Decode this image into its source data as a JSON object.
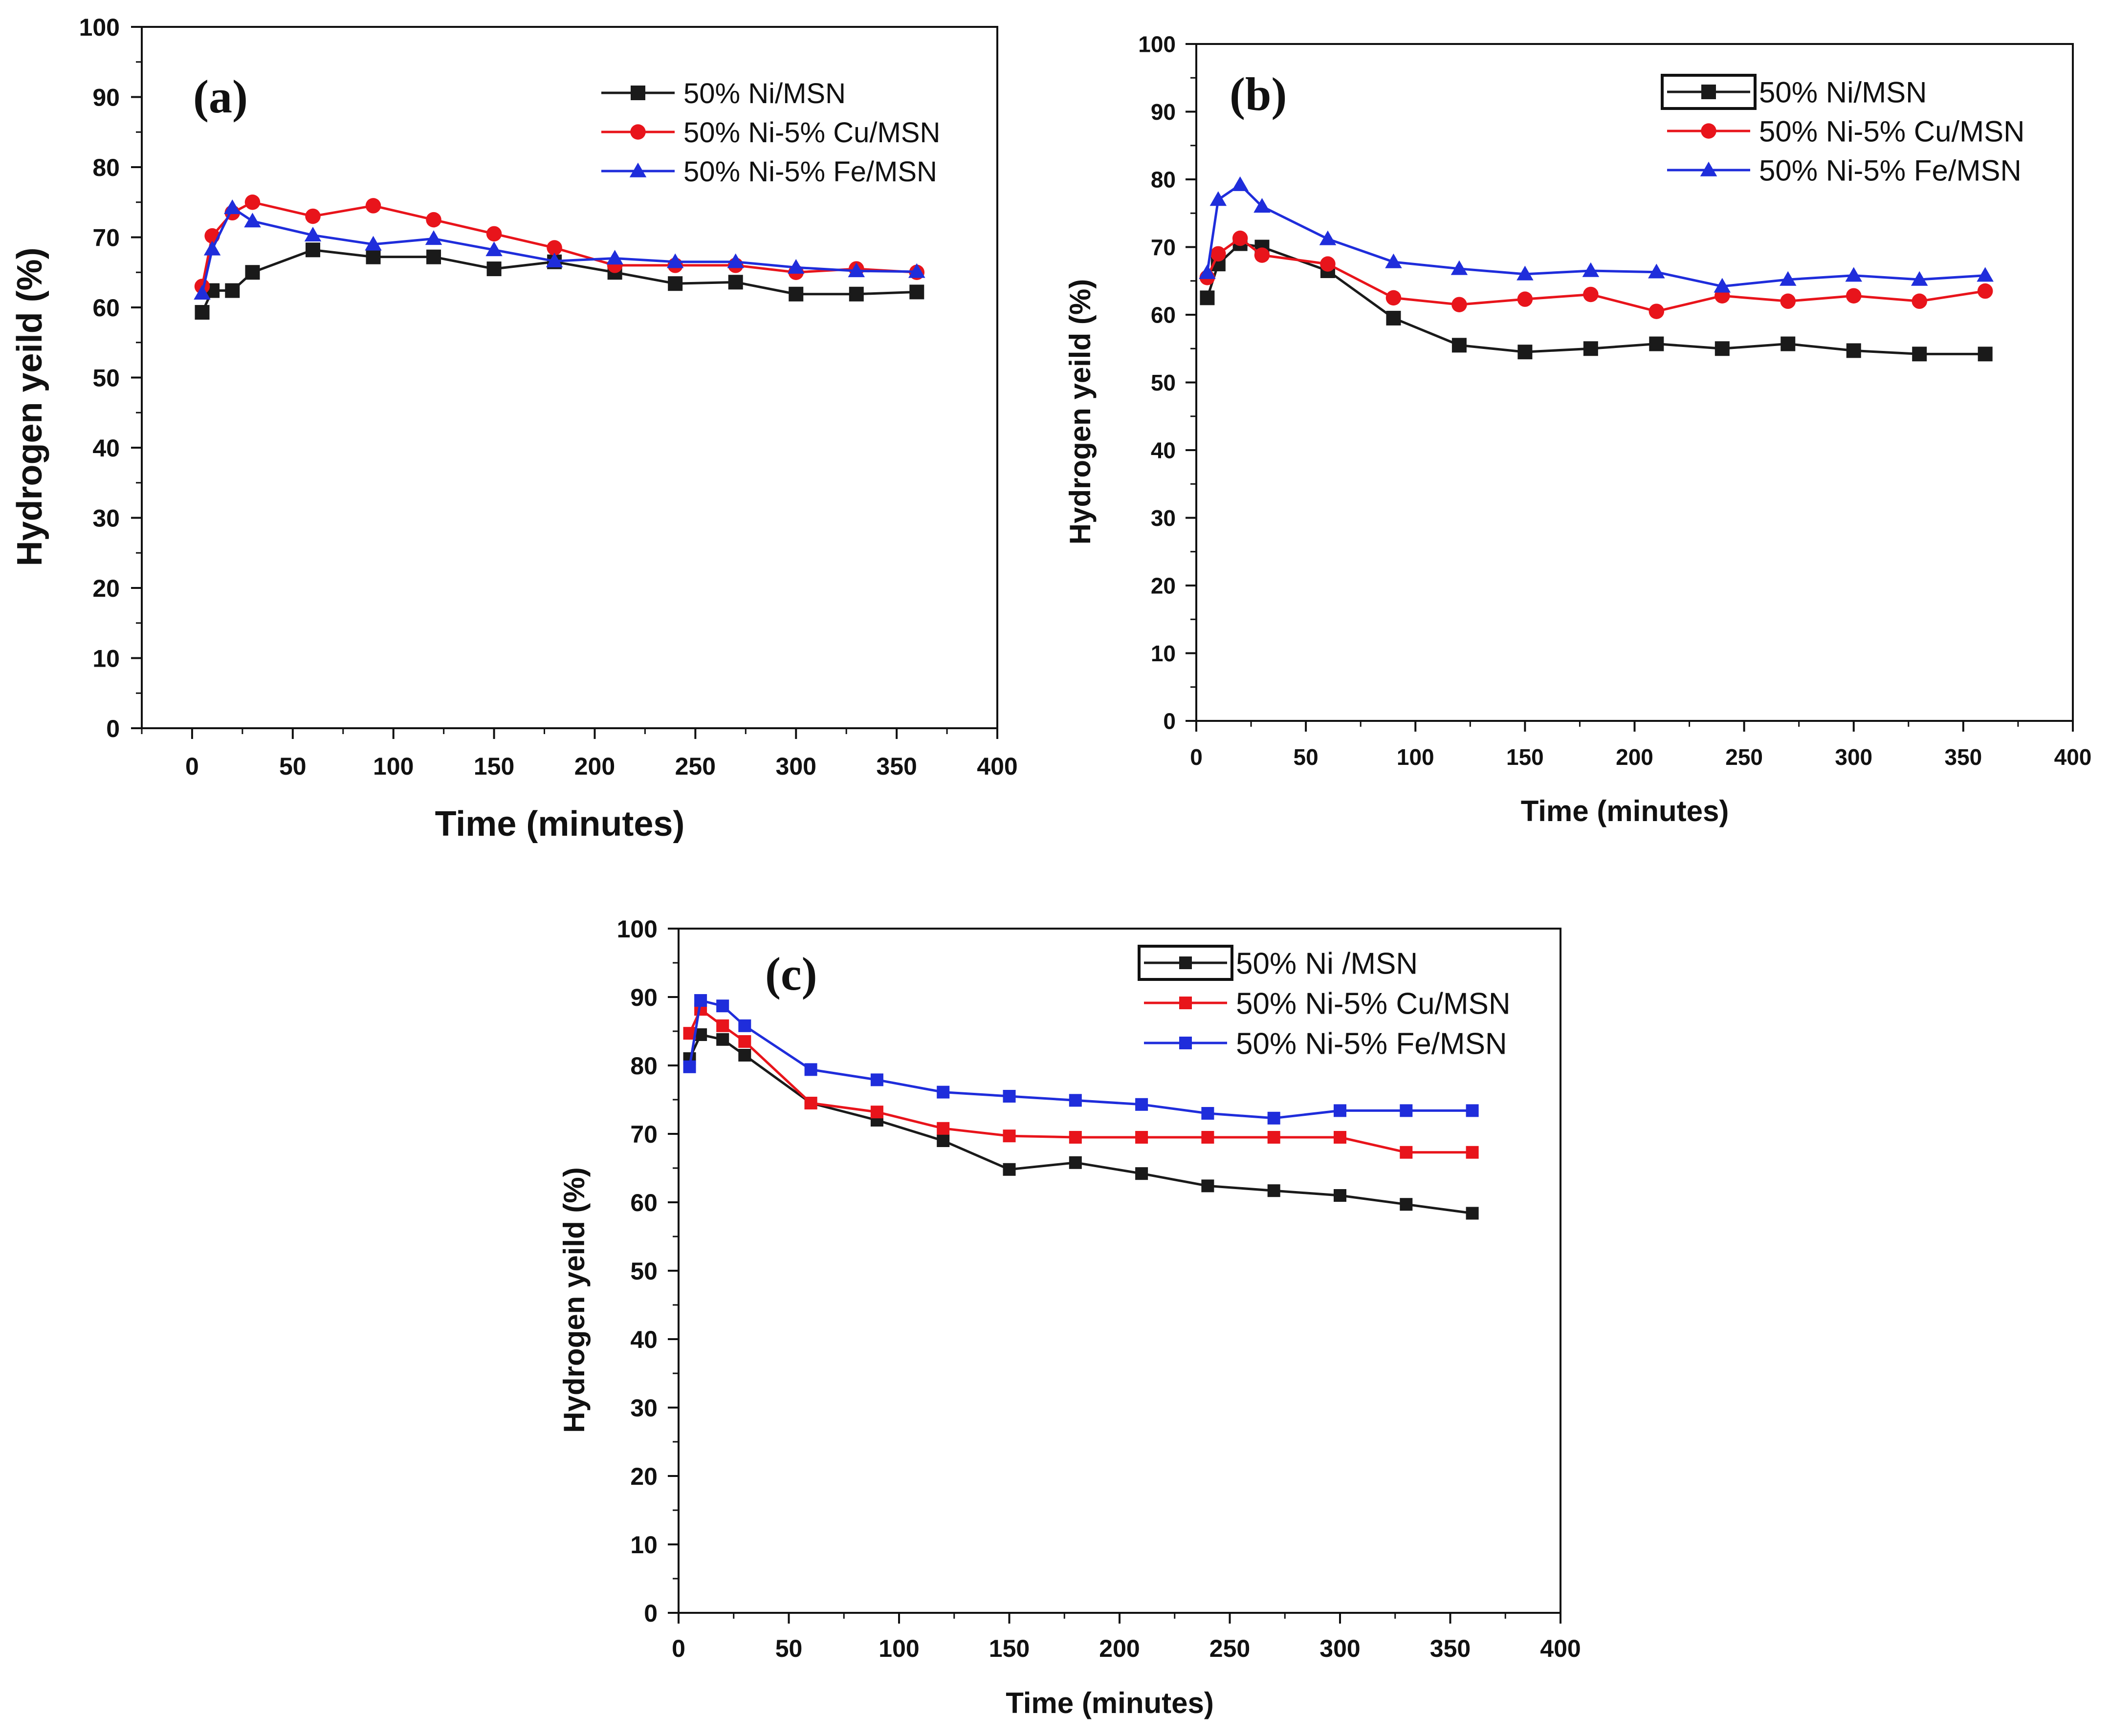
{
  "figure": {
    "description_panels": [
      "a",
      "b",
      "c"
    ]
  },
  "chart_data": [
    {
      "type": "line",
      "panel_label": "(a)",
      "title": "",
      "xlabel": "Time (minutes)",
      "ylabel": "Hydrogen yeild (%)",
      "xlim": [
        -25,
        400
      ],
      "ylim": [
        0,
        100
      ],
      "xticks": [
        0,
        50,
        100,
        150,
        200,
        250,
        300,
        350,
        400
      ],
      "yticks": [
        0,
        10,
        20,
        30,
        40,
        50,
        60,
        70,
        80,
        90,
        100
      ],
      "grid": false,
      "legend_position": "top-right",
      "series": [
        {
          "name": "50% Ni/MSN",
          "color": "#1a1a1a",
          "marker": "square",
          "x": [
            5,
            10,
            20,
            30,
            60,
            90,
            120,
            150,
            180,
            210,
            240,
            270,
            300,
            330,
            360
          ],
          "values": [
            59.3,
            62.4,
            62.4,
            65,
            68.2,
            67.2,
            67.2,
            65.5,
            66.5,
            65,
            63.4,
            63.6,
            61.9,
            61.9,
            62.2
          ]
        },
        {
          "name": "50% Ni-5% Cu/MSN",
          "color": "#e8141b",
          "marker": "circle",
          "x": [
            5,
            10,
            20,
            30,
            60,
            90,
            120,
            150,
            180,
            210,
            240,
            270,
            300,
            330,
            360
          ],
          "values": [
            63,
            70.2,
            73.5,
            75,
            73,
            74.5,
            72.5,
            70.5,
            68.5,
            66,
            66,
            66,
            65,
            65.5,
            65
          ]
        },
        {
          "name": "50% Ni-5% Fe/MSN",
          "color": "#1f2ddb",
          "marker": "triangle",
          "x": [
            5,
            10,
            20,
            30,
            60,
            90,
            120,
            150,
            180,
            210,
            240,
            270,
            300,
            330,
            360
          ],
          "values": [
            62,
            68.3,
            74.2,
            72.3,
            70.3,
            69,
            69.8,
            68.2,
            66.6,
            67,
            66.5,
            66.5,
            65.7,
            65.2,
            65.1
          ]
        }
      ]
    },
    {
      "type": "line",
      "panel_label": "(b)",
      "title": "",
      "xlabel": "Time (minutes)",
      "ylabel": "Hydrogen yeild (%)",
      "xlim": [
        0,
        400
      ],
      "ylim": [
        0,
        100
      ],
      "xticks": [
        0,
        50,
        100,
        150,
        200,
        250,
        300,
        350,
        400
      ],
      "yticks": [
        0,
        10,
        20,
        30,
        40,
        50,
        60,
        70,
        80,
        90,
        100
      ],
      "grid": false,
      "legend_position": "top-right",
      "series": [
        {
          "name": "50% Ni/MSN",
          "color": "#1a1a1a",
          "marker": "square",
          "x": [
            5,
            10,
            20,
            30,
            60,
            90,
            120,
            150,
            180,
            210,
            240,
            270,
            300,
            330,
            360
          ],
          "values": [
            62.5,
            67.5,
            70.5,
            70,
            66.5,
            59.5,
            55.5,
            54.5,
            55,
            55.7,
            55,
            55.7,
            54.7,
            54.2,
            54.2
          ]
        },
        {
          "name": "50% Ni-5% Cu/MSN",
          "color": "#e8141b",
          "marker": "circle",
          "x": [
            5,
            10,
            20,
            30,
            60,
            90,
            120,
            150,
            180,
            210,
            240,
            270,
            300,
            330,
            360
          ],
          "values": [
            65.5,
            69,
            71.3,
            68.8,
            67.5,
            62.5,
            61.5,
            62.3,
            63,
            60.5,
            62.8,
            62,
            62.8,
            62,
            63.5
          ]
        },
        {
          "name": "50% Ni-5% Fe/MSN",
          "color": "#1f2ddb",
          "marker": "triangle",
          "x": [
            5,
            10,
            20,
            30,
            60,
            90,
            120,
            150,
            180,
            210,
            240,
            270,
            300,
            330,
            360
          ],
          "values": [
            66.2,
            77,
            79.2,
            76,
            71.2,
            67.8,
            66.8,
            66,
            66.5,
            66.3,
            64.2,
            65.2,
            65.8,
            65.2,
            65.8
          ]
        }
      ]
    },
    {
      "type": "line",
      "panel_label": "(c)",
      "title": "",
      "xlabel": "Time (minutes)",
      "ylabel": "Hydrogen yeild (%)",
      "xlim": [
        0,
        400
      ],
      "ylim": [
        0,
        100
      ],
      "xticks": [
        0,
        50,
        100,
        150,
        200,
        250,
        300,
        350,
        400
      ],
      "yticks": [
        0,
        10,
        20,
        30,
        40,
        50,
        60,
        70,
        80,
        90,
        100
      ],
      "grid": false,
      "legend_position": "top-right",
      "series": [
        {
          "name": "50% Ni /MSN",
          "color": "#1a1a1a",
          "marker": "square",
          "x": [
            5,
            10,
            20,
            30,
            60,
            90,
            120,
            150,
            180,
            210,
            240,
            270,
            300,
            330,
            360
          ],
          "values": [
            81,
            84.5,
            83.8,
            81.5,
            74.5,
            72,
            69,
            64.8,
            65.8,
            64.2,
            62.4,
            61.7,
            61,
            59.7,
            58.4
          ]
        },
        {
          "name": "50% Ni-5% Cu/MSN",
          "color": "#e8141b",
          "marker": "square",
          "x": [
            5,
            10,
            20,
            30,
            60,
            90,
            120,
            150,
            180,
            210,
            240,
            270,
            300,
            330,
            360
          ],
          "values": [
            84.7,
            88.2,
            85.8,
            83.5,
            74.5,
            73.2,
            70.8,
            69.7,
            69.5,
            69.5,
            69.5,
            69.5,
            69.5,
            67.3,
            67.3
          ]
        },
        {
          "name": "50% Ni-5% Fe/MSN",
          "color": "#1f2ddb",
          "marker": "square",
          "x": [
            5,
            10,
            20,
            30,
            60,
            90,
            120,
            150,
            180,
            210,
            240,
            270,
            300,
            330,
            360
          ],
          "values": [
            79.8,
            89.5,
            88.7,
            85.8,
            79.4,
            77.9,
            76.1,
            75.5,
            74.9,
            74.3,
            73,
            72.3,
            73.4,
            73.4,
            73.4
          ]
        }
      ]
    }
  ]
}
